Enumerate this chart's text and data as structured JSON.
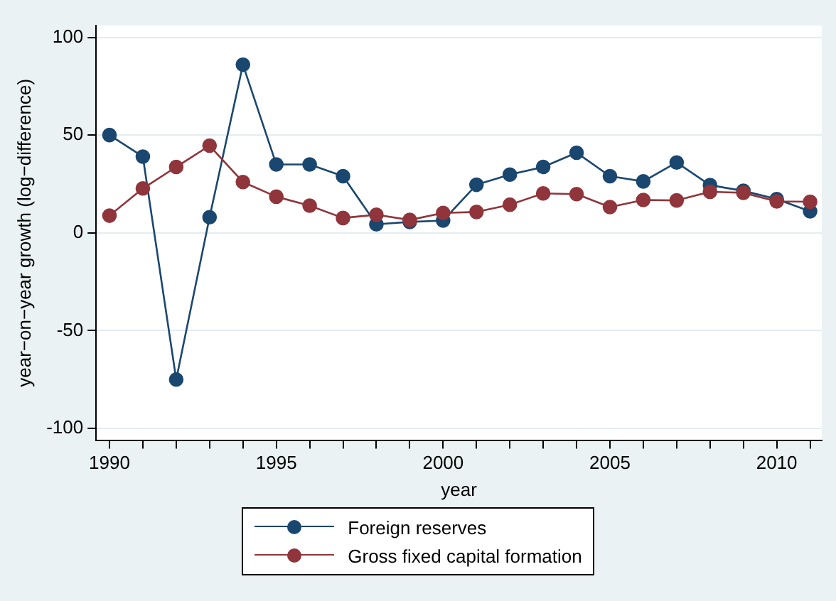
{
  "chart_data": {
    "type": "line",
    "xlabel": "year",
    "ylabel": "year−on−year growth (log−difference)",
    "x": [
      1990,
      1991,
      1992,
      1993,
      1994,
      1995,
      1996,
      1997,
      1998,
      1999,
      2000,
      2001,
      2002,
      2003,
      2004,
      2005,
      2006,
      2007,
      2008,
      2009,
      2010,
      2011
    ],
    "series": [
      {
        "name": "Foreign reserves",
        "color": "#1a476f",
        "values": [
          50,
          39,
          -75,
          8,
          86,
          35,
          35,
          29,
          4.4,
          5.6,
          6.3,
          24.6,
          29.8,
          33.7,
          41,
          29,
          26.3,
          36,
          24.4,
          21.5,
          17.3,
          11
        ]
      },
      {
        "name": "Gross fixed capital formation",
        "color": "#90353b",
        "values": [
          8.8,
          22.7,
          33.7,
          44.6,
          26,
          18.5,
          13.9,
          7.6,
          9.3,
          6.6,
          10.2,
          10.7,
          14.4,
          20.2,
          19.8,
          13.2,
          16.8,
          16.6,
          21,
          20.5,
          16.1,
          15.9
        ]
      }
    ],
    "xlim": [
      1989.6,
      2011.35
    ],
    "xticks": [
      1990,
      {
        "value": 1991,
        "label": null
      },
      {
        "value": 1992,
        "label": null
      },
      {
        "value": 1993,
        "label": null
      },
      {
        "value": 1994,
        "label": null
      },
      1995,
      {
        "value": 1996,
        "label": null
      },
      {
        "value": 1997,
        "label": null
      },
      {
        "value": 1998,
        "label": null
      },
      {
        "value": 1999,
        "label": null
      },
      2000,
      {
        "value": 2001,
        "label": null
      },
      {
        "value": 2002,
        "label": null
      },
      {
        "value": 2003,
        "label": null
      },
      {
        "value": 2004,
        "label": null
      },
      2005,
      {
        "value": 2006,
        "label": null
      },
      {
        "value": 2007,
        "label": null
      },
      {
        "value": 2008,
        "label": null
      },
      {
        "value": 2009,
        "label": null
      },
      2010,
      {
        "value": 2011,
        "label": null
      }
    ],
    "ylim": [
      -106,
      106
    ],
    "yticks": [
      -100,
      -50,
      0,
      50,
      100
    ],
    "grid": "y",
    "legend": "bottom",
    "marker": "circle",
    "line_style": "solid"
  }
}
